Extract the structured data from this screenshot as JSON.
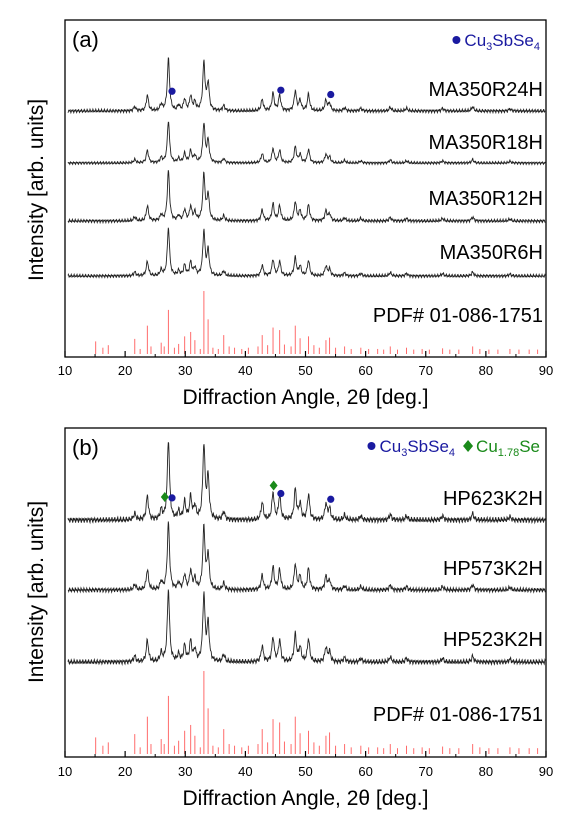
{
  "colors": {
    "marker_cu3sbse4": "#1a1aa0",
    "marker_cu178se": "#1a8a1a",
    "pdf_lines": "#ff6b6b",
    "trace": "#222222"
  },
  "chart_data": [
    {
      "type": "line",
      "panel_label": "(a)",
      "xlabel": "Diffraction Angle, 2θ [deg.]",
      "ylabel": "Intensity [arb. units]",
      "xlim": [
        10,
        90
      ],
      "xticks": [
        10,
        20,
        30,
        40,
        50,
        60,
        70,
        80,
        90
      ],
      "legend": [
        {
          "marker": "circle",
          "color": "#1a1aa0",
          "main": "Cu",
          "sub1": "3",
          "mid": "SbSe",
          "sub2": "4",
          "end": ""
        }
      ],
      "series": [
        {
          "name": "MA350R24H"
        },
        {
          "name": "MA350R18H"
        },
        {
          "name": "MA350R12H"
        },
        {
          "name": "MA350R6H"
        }
      ],
      "reference": {
        "name": "PDF# 01-086-1751"
      },
      "markers": [
        {
          "phase": "Cu3SbSe4",
          "x": 27.8,
          "series": 0
        },
        {
          "phase": "Cu3SbSe4",
          "x": 45.9,
          "series": 0
        },
        {
          "phase": "Cu3SbSe4",
          "x": 54.2,
          "series": 0
        }
      ]
    },
    {
      "type": "line",
      "panel_label": "(b)",
      "xlabel": "Diffraction Angle, 2θ [deg.]",
      "ylabel": "Intensity [arb. units]",
      "xlim": [
        10,
        90
      ],
      "xticks": [
        10,
        20,
        30,
        40,
        50,
        60,
        70,
        80,
        90
      ],
      "legend": [
        {
          "marker": "circle",
          "color": "#1a1aa0",
          "main": "Cu",
          "sub1": "3",
          "mid": "SbSe",
          "sub2": "4",
          "end": ""
        },
        {
          "marker": "diamond",
          "color": "#1a8a1a",
          "main": "Cu",
          "sub1": "1.78",
          "mid": "Se",
          "sub2": "",
          "end": ""
        }
      ],
      "series": [
        {
          "name": "HP623K2H"
        },
        {
          "name": "HP573K2H"
        },
        {
          "name": "HP523K2H"
        }
      ],
      "reference": {
        "name": "PDF# 01-086-1751"
      },
      "markers": [
        {
          "phase": "Cu3SbSe4",
          "x": 27.8,
          "series": 0
        },
        {
          "phase": "Cu3SbSe4",
          "x": 45.9,
          "series": 0
        },
        {
          "phase": "Cu3SbSe4",
          "x": 54.2,
          "series": 0
        },
        {
          "phase": "Cu1.78Se",
          "x": 26.6,
          "series": 0
        },
        {
          "phase": "Cu1.78Se",
          "x": 44.7,
          "series": 0
        }
      ]
    }
  ],
  "xrd_peaks": [
    {
      "x": 21.6,
      "h": 0.08
    },
    {
      "x": 23.7,
      "h": 0.3
    },
    {
      "x": 26.0,
      "h": 0.12
    },
    {
      "x": 27.2,
      "h": 1.0
    },
    {
      "x": 28.9,
      "h": 0.1
    },
    {
      "x": 29.9,
      "h": 0.22
    },
    {
      "x": 30.9,
      "h": 0.28
    },
    {
      "x": 31.6,
      "h": 0.16
    },
    {
      "x": 33.1,
      "h": 0.92
    },
    {
      "x": 33.8,
      "h": 0.52
    },
    {
      "x": 36.4,
      "h": 0.1
    },
    {
      "x": 42.8,
      "h": 0.22
    },
    {
      "x": 44.6,
      "h": 0.34
    },
    {
      "x": 45.7,
      "h": 0.3
    },
    {
      "x": 48.3,
      "h": 0.38
    },
    {
      "x": 49.1,
      "h": 0.2
    },
    {
      "x": 50.5,
      "h": 0.32
    },
    {
      "x": 53.4,
      "h": 0.2
    },
    {
      "x": 54.0,
      "h": 0.14
    },
    {
      "x": 56.5,
      "h": 0.06
    },
    {
      "x": 59.2,
      "h": 0.05
    },
    {
      "x": 64.1,
      "h": 0.07
    },
    {
      "x": 66.8,
      "h": 0.05
    },
    {
      "x": 72.8,
      "h": 0.05
    },
    {
      "x": 77.8,
      "h": 0.08
    },
    {
      "x": 84.0,
      "h": 0.04
    }
  ],
  "reference_lines": [
    {
      "x": 15.1,
      "h": 0.2
    },
    {
      "x": 16.3,
      "h": 0.1
    },
    {
      "x": 17.2,
      "h": 0.14
    },
    {
      "x": 21.6,
      "h": 0.24
    },
    {
      "x": 22.5,
      "h": 0.08
    },
    {
      "x": 23.7,
      "h": 0.45
    },
    {
      "x": 24.3,
      "h": 0.12
    },
    {
      "x": 26.0,
      "h": 0.18
    },
    {
      "x": 26.5,
      "h": 0.12
    },
    {
      "x": 27.2,
      "h": 0.7
    },
    {
      "x": 28.2,
      "h": 0.1
    },
    {
      "x": 28.9,
      "h": 0.16
    },
    {
      "x": 29.9,
      "h": 0.28
    },
    {
      "x": 30.9,
      "h": 0.35
    },
    {
      "x": 31.6,
      "h": 0.22
    },
    {
      "x": 32.5,
      "h": 0.08
    },
    {
      "x": 33.1,
      "h": 1.0
    },
    {
      "x": 33.8,
      "h": 0.55
    },
    {
      "x": 34.6,
      "h": 0.1
    },
    {
      "x": 35.5,
      "h": 0.08
    },
    {
      "x": 36.4,
      "h": 0.3
    },
    {
      "x": 37.3,
      "h": 0.12
    },
    {
      "x": 38.2,
      "h": 0.1
    },
    {
      "x": 39.4,
      "h": 0.08
    },
    {
      "x": 40.5,
      "h": 0.1
    },
    {
      "x": 42.1,
      "h": 0.12
    },
    {
      "x": 42.8,
      "h": 0.3
    },
    {
      "x": 43.7,
      "h": 0.14
    },
    {
      "x": 44.6,
      "h": 0.42
    },
    {
      "x": 45.7,
      "h": 0.38
    },
    {
      "x": 46.5,
      "h": 0.15
    },
    {
      "x": 47.6,
      "h": 0.12
    },
    {
      "x": 48.3,
      "h": 0.45
    },
    {
      "x": 49.1,
      "h": 0.25
    },
    {
      "x": 50.5,
      "h": 0.28
    },
    {
      "x": 51.4,
      "h": 0.14
    },
    {
      "x": 52.3,
      "h": 0.1
    },
    {
      "x": 53.4,
      "h": 0.22
    },
    {
      "x": 54.0,
      "h": 0.26
    },
    {
      "x": 55.0,
      "h": 0.1
    },
    {
      "x": 56.5,
      "h": 0.12
    },
    {
      "x": 57.6,
      "h": 0.08
    },
    {
      "x": 59.2,
      "h": 0.1
    },
    {
      "x": 60.5,
      "h": 0.08
    },
    {
      "x": 62.0,
      "h": 0.08
    },
    {
      "x": 63.0,
      "h": 0.07
    },
    {
      "x": 64.1,
      "h": 0.12
    },
    {
      "x": 65.3,
      "h": 0.07
    },
    {
      "x": 66.8,
      "h": 0.1
    },
    {
      "x": 68.0,
      "h": 0.07
    },
    {
      "x": 69.4,
      "h": 0.08
    },
    {
      "x": 70.6,
      "h": 0.07
    },
    {
      "x": 72.8,
      "h": 0.09
    },
    {
      "x": 74.0,
      "h": 0.07
    },
    {
      "x": 75.5,
      "h": 0.07
    },
    {
      "x": 77.8,
      "h": 0.12
    },
    {
      "x": 79.0,
      "h": 0.08
    },
    {
      "x": 80.5,
      "h": 0.07
    },
    {
      "x": 82.0,
      "h": 0.07
    },
    {
      "x": 84.0,
      "h": 0.08
    },
    {
      "x": 85.5,
      "h": 0.07
    },
    {
      "x": 87.2,
      "h": 0.07
    },
    {
      "x": 88.6,
      "h": 0.07
    }
  ]
}
